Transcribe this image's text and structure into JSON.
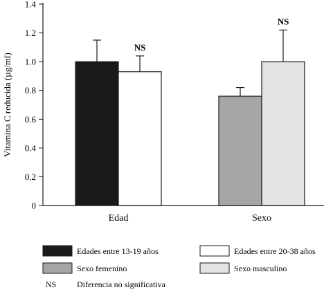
{
  "chart_data": {
    "type": "bar",
    "ylabel": "Vitamina C reducida (µg/ml)",
    "ylim": [
      0,
      1.4
    ],
    "yticks": [
      "0",
      "0.2",
      "0.4",
      "0.6",
      "0.8",
      "1.0",
      "1.2",
      "1.4"
    ],
    "groups": [
      {
        "label": "Edad",
        "bars": [
          {
            "series": "Edades entre 13-19 años",
            "value": 1.0,
            "error": 0.15,
            "color": "#1a1a1a",
            "annotation": ""
          },
          {
            "series": "Edades entre 20-38 años",
            "value": 0.93,
            "error": 0.11,
            "color": "#ffffff",
            "annotation": "NS"
          }
        ]
      },
      {
        "label": "Sexo",
        "bars": [
          {
            "series": "Sexo femenino",
            "value": 0.76,
            "error": 0.06,
            "color": "#a6a6a6",
            "annotation": ""
          },
          {
            "series": "Sexo masculino",
            "value": 1.0,
            "error": 0.22,
            "color": "#e3e3e3",
            "annotation": "NS"
          }
        ]
      }
    ]
  },
  "legend": {
    "items": [
      {
        "label": "Edades entre 13-19 años",
        "color": "#1a1a1a"
      },
      {
        "label": "Edades entre 20-38 años",
        "color": "#ffffff"
      },
      {
        "label": "Sexo femenino",
        "color": "#a6a6a6"
      },
      {
        "label": "Sexo masculino",
        "color": "#e3e3e3"
      }
    ],
    "note_symbol": "NS",
    "note_text": "Diferencia no significativa"
  }
}
